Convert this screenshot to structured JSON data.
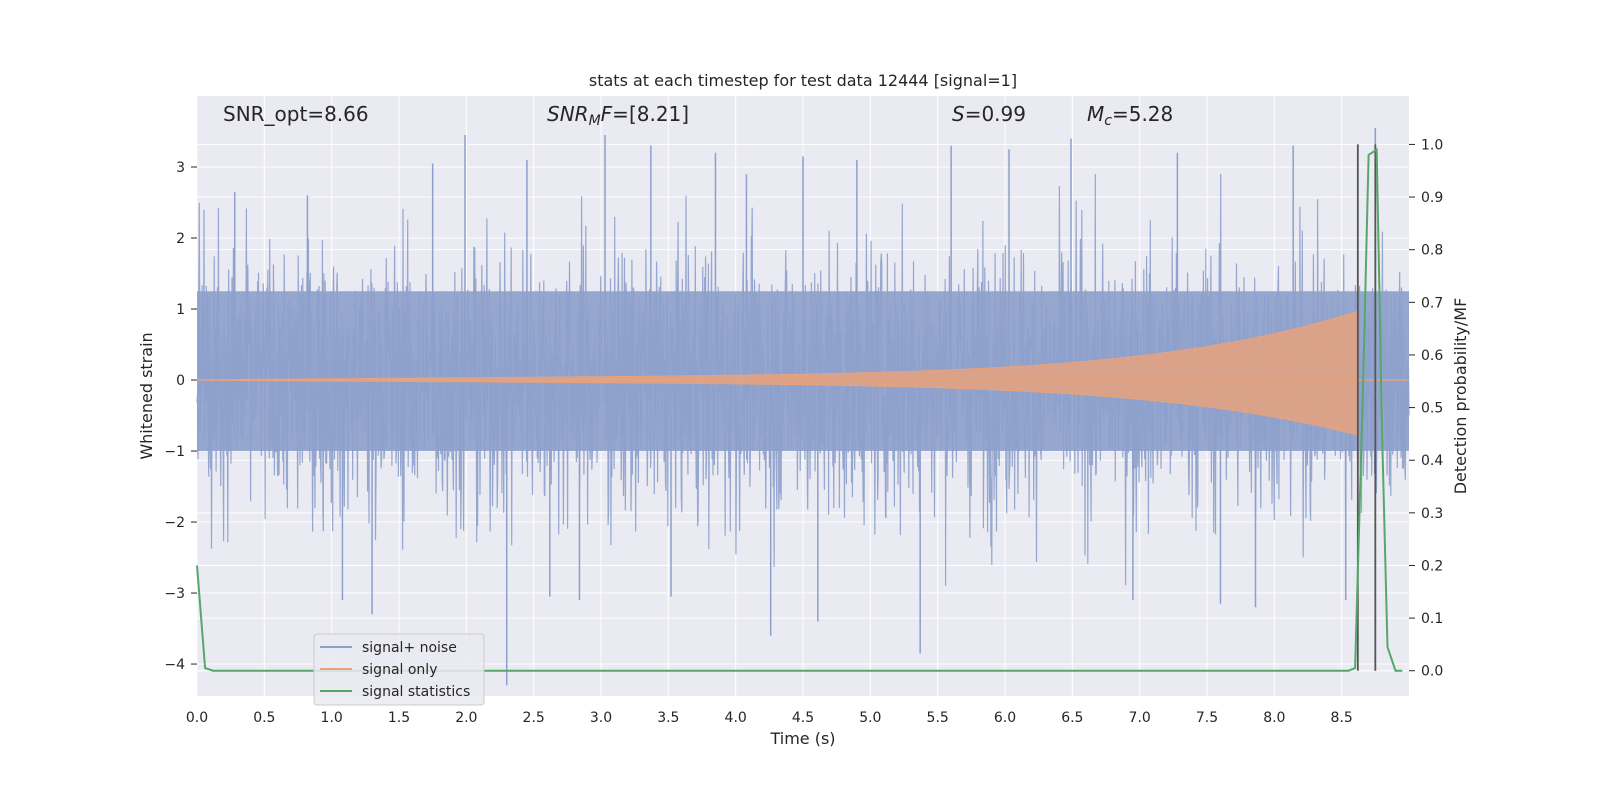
{
  "chart_data": {
    "type": "line",
    "title": "stats at each timestep for test data 12444 [signal=1]",
    "xlabel": "Time (s)",
    "ylabel": "Whitened strain",
    "y2label": "Detection probability/MF",
    "xlim": [
      0.0,
      9.0
    ],
    "ylim": [
      -4.45,
      4.0
    ],
    "y2lim": [
      -0.048,
      1.092
    ],
    "xticks": [
      "0.0",
      "0.5",
      "1.0",
      "1.5",
      "2.0",
      "2.5",
      "3.0",
      "3.5",
      "4.0",
      "4.5",
      "5.0",
      "5.5",
      "6.0",
      "6.5",
      "7.0",
      "7.5",
      "8.0",
      "8.5"
    ],
    "yticks": [
      "3",
      "2",
      "1",
      "0",
      "−1",
      "−2",
      "−3",
      "−4"
    ],
    "y2ticks": [
      "1.0",
      "0.9",
      "0.8",
      "0.7",
      "0.6",
      "0.5",
      "0.4",
      "0.3",
      "0.2",
      "0.1",
      "0.0"
    ],
    "grid": true,
    "legend_placement": "lower-left",
    "annotations": {
      "snr_opt": "SNR_opt=8.66",
      "snr_mf": "[8.21]",
      "snr_mf_base": "SNR",
      "snr_mf_sub": "M",
      "snr_mf_f": "F",
      "s_val": "=0.99",
      "s_sym": "S",
      "mc_sym": "M",
      "mc_sub": "c",
      "mc_val": "=5.28"
    },
    "series": [
      {
        "name": "signal+ noise",
        "color": "#8da0cb",
        "description_values": "whitened strain noise, approximately N(0,1), sampled at high rate over 0-9 s, envelope roughly -3.5 to 3.5",
        "spikes": [
          [
            0.28,
            2.65
          ],
          [
            0.82,
            2.6
          ],
          [
            1.08,
            -3.1
          ],
          [
            1.3,
            -3.3
          ],
          [
            1.75,
            3.05
          ],
          [
            1.99,
            3.45
          ],
          [
            2.3,
            -4.3
          ],
          [
            2.45,
            3.1
          ],
          [
            2.62,
            -3.05
          ],
          [
            2.84,
            -3.1
          ],
          [
            3.03,
            3.45
          ],
          [
            3.37,
            3.3
          ],
          [
            3.52,
            -3.05
          ],
          [
            3.85,
            3.2
          ],
          [
            4.08,
            2.9
          ],
          [
            4.26,
            -3.6
          ],
          [
            4.5,
            3.15
          ],
          [
            4.61,
            -3.4
          ],
          [
            4.9,
            3.1
          ],
          [
            5.37,
            -3.85
          ],
          [
            5.6,
            3.3
          ],
          [
            6.03,
            3.25
          ],
          [
            6.49,
            3.4
          ],
          [
            6.95,
            -3.1
          ],
          [
            7.28,
            3.2
          ],
          [
            7.6,
            -3.15
          ],
          [
            7.86,
            -3.2
          ],
          [
            8.14,
            3.3
          ],
          [
            8.53,
            -3.1
          ],
          [
            8.75,
            3.55
          ]
        ]
      },
      {
        "name": "signal only",
        "color": "#e8a27c",
        "chirp": {
          "start": 0.1,
          "end": 8.62,
          "amp_start": 0.005,
          "amp_end": 0.85
        }
      },
      {
        "name": "signal statistics",
        "color": "#55a868",
        "x": [
          0.0,
          0.06,
          0.12,
          8.55,
          8.6,
          8.66,
          8.7,
          8.76,
          8.8,
          8.84,
          8.9,
          8.95
        ],
        "y": [
          0.2,
          0.005,
          0.0,
          0.0,
          0.005,
          0.55,
          0.98,
          0.99,
          0.45,
          0.045,
          0.0,
          0.0
        ]
      }
    ],
    "vlines": [
      8.62,
      8.75
    ],
    "vline_color": "#555555"
  }
}
